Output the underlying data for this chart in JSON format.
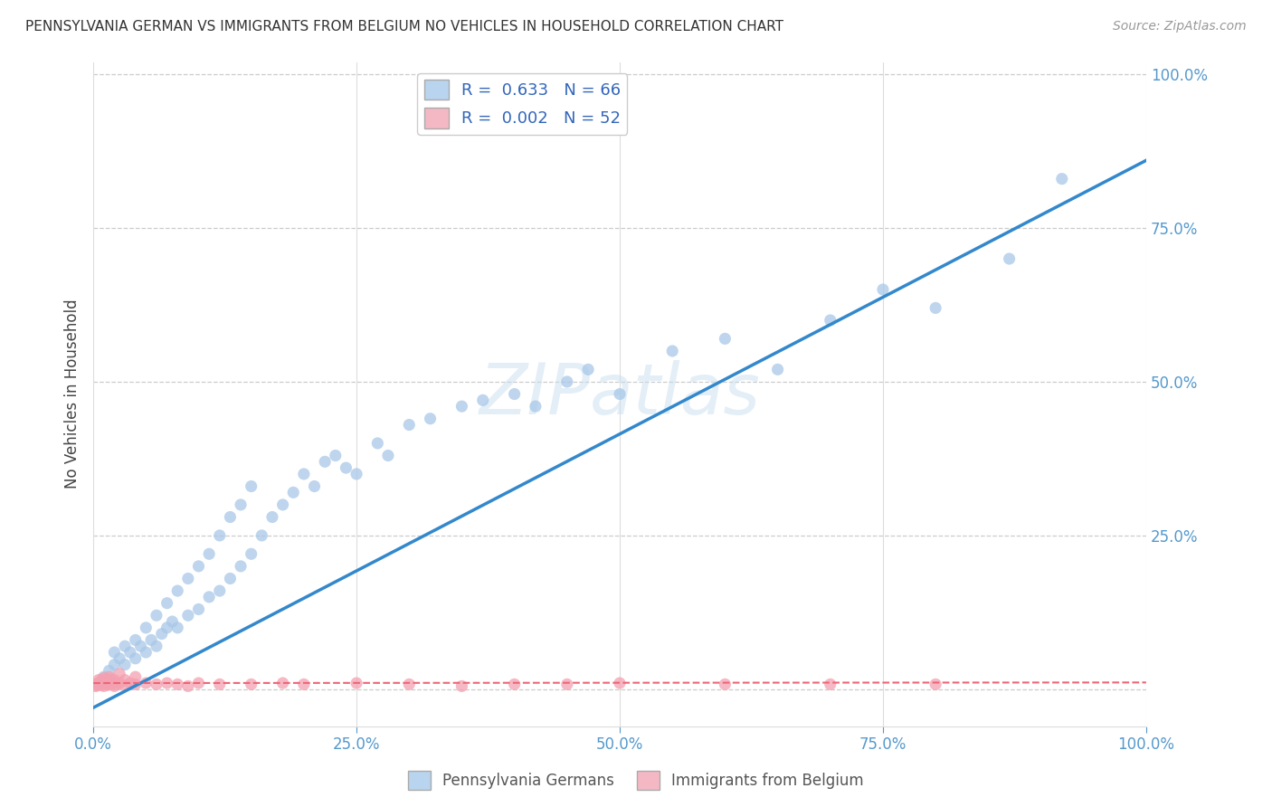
{
  "title": "PENNSYLVANIA GERMAN VS IMMIGRANTS FROM BELGIUM NO VEHICLES IN HOUSEHOLD CORRELATION CHART",
  "source": "Source: ZipAtlas.com",
  "ylabel": "No Vehicles in Household",
  "legend_1_label": "Pennsylvania Germans",
  "legend_2_label": "Immigrants from Belgium",
  "R1": 0.633,
  "N1": 66,
  "R2": 0.002,
  "N2": 52,
  "blue_color": "#a8c8e8",
  "pink_color": "#f4a0b0",
  "line_blue": "#3388cc",
  "line_pink": "#ee6677",
  "watermark_text": "ZIPatlas",
  "blue_scatter_x": [
    0.005,
    0.01,
    0.015,
    0.02,
    0.02,
    0.025,
    0.03,
    0.03,
    0.035,
    0.04,
    0.04,
    0.045,
    0.05,
    0.05,
    0.055,
    0.06,
    0.06,
    0.065,
    0.07,
    0.07,
    0.075,
    0.08,
    0.08,
    0.09,
    0.09,
    0.1,
    0.1,
    0.11,
    0.11,
    0.12,
    0.12,
    0.13,
    0.13,
    0.14,
    0.14,
    0.15,
    0.15,
    0.16,
    0.17,
    0.18,
    0.19,
    0.2,
    0.21,
    0.22,
    0.23,
    0.24,
    0.25,
    0.27,
    0.28,
    0.3,
    0.32,
    0.35,
    0.37,
    0.4,
    0.42,
    0.45,
    0.47,
    0.5,
    0.55,
    0.6,
    0.65,
    0.7,
    0.75,
    0.8,
    0.87,
    0.92
  ],
  "blue_scatter_y": [
    0.01,
    0.02,
    0.03,
    0.04,
    0.06,
    0.05,
    0.04,
    0.07,
    0.06,
    0.05,
    0.08,
    0.07,
    0.06,
    0.1,
    0.08,
    0.07,
    0.12,
    0.09,
    0.1,
    0.14,
    0.11,
    0.1,
    0.16,
    0.12,
    0.18,
    0.13,
    0.2,
    0.15,
    0.22,
    0.16,
    0.25,
    0.18,
    0.28,
    0.2,
    0.3,
    0.22,
    0.33,
    0.25,
    0.28,
    0.3,
    0.32,
    0.35,
    0.33,
    0.37,
    0.38,
    0.36,
    0.35,
    0.4,
    0.38,
    0.43,
    0.44,
    0.46,
    0.47,
    0.48,
    0.46,
    0.5,
    0.52,
    0.48,
    0.55,
    0.57,
    0.52,
    0.6,
    0.65,
    0.62,
    0.7,
    0.83
  ],
  "pink_scatter_x": [
    0.002,
    0.003,
    0.004,
    0.005,
    0.005,
    0.006,
    0.007,
    0.007,
    0.008,
    0.008,
    0.009,
    0.01,
    0.01,
    0.01,
    0.012,
    0.012,
    0.013,
    0.014,
    0.015,
    0.015,
    0.016,
    0.017,
    0.018,
    0.02,
    0.02,
    0.022,
    0.025,
    0.025,
    0.03,
    0.03,
    0.035,
    0.04,
    0.04,
    0.05,
    0.06,
    0.07,
    0.08,
    0.09,
    0.1,
    0.12,
    0.15,
    0.18,
    0.2,
    0.25,
    0.3,
    0.35,
    0.4,
    0.45,
    0.5,
    0.6,
    0.7,
    0.8
  ],
  "pink_scatter_y": [
    0.005,
    0.008,
    0.006,
    0.01,
    0.015,
    0.008,
    0.01,
    0.012,
    0.007,
    0.015,
    0.009,
    0.005,
    0.012,
    0.018,
    0.008,
    0.015,
    0.01,
    0.007,
    0.012,
    0.02,
    0.008,
    0.015,
    0.01,
    0.005,
    0.015,
    0.008,
    0.01,
    0.025,
    0.006,
    0.015,
    0.01,
    0.008,
    0.02,
    0.01,
    0.008,
    0.01,
    0.008,
    0.005,
    0.01,
    0.008,
    0.008,
    0.01,
    0.008,
    0.01,
    0.008,
    0.005,
    0.008,
    0.008,
    0.01,
    0.008,
    0.008,
    0.008
  ],
  "blue_line_x0": 0.0,
  "blue_line_y0": -0.03,
  "blue_line_x1": 1.0,
  "blue_line_y1": 0.86,
  "pink_line_x0": 0.0,
  "pink_line_y0": 0.01,
  "pink_line_x1": 1.0,
  "pink_line_y1": 0.011,
  "xlim": [
    0,
    1.0
  ],
  "ylim": [
    -0.06,
    1.02
  ],
  "yticks": [
    0,
    0.25,
    0.5,
    0.75,
    1.0
  ],
  "xticks": [
    0,
    0.25,
    0.5,
    0.75,
    1.0
  ],
  "background": "#ffffff",
  "grid_color": "#cccccc",
  "tick_color": "#5599cc",
  "title_fontsize": 11,
  "source_fontsize": 10,
  "ylabel_fontsize": 12
}
